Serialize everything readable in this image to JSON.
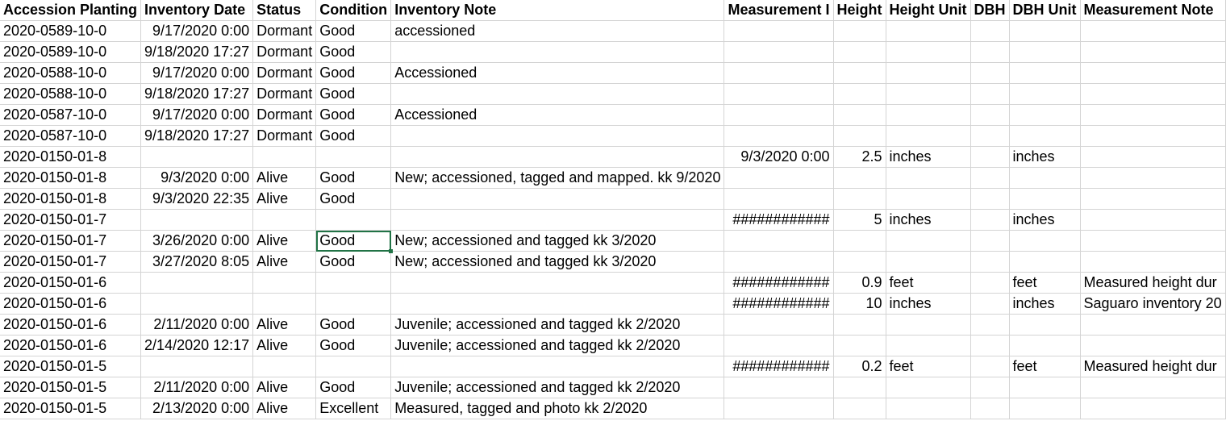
{
  "headers": [
    "Accession Planting",
    "Inventory Date",
    "Status",
    "Condition",
    "Inventory Note",
    "Measurement I",
    "Height",
    "Height Unit",
    "DBH",
    "DBH Unit",
    "Measurement Note"
  ],
  "rows": [
    [
      "2020-0589-10-0",
      "9/17/2020 0:00",
      "Dormant",
      "Good",
      "accessioned",
      "",
      "",
      "",
      "",
      "",
      ""
    ],
    [
      "2020-0589-10-0",
      "9/18/2020 17:27",
      "Dormant",
      "Good",
      "",
      "",
      "",
      "",
      "",
      "",
      ""
    ],
    [
      "2020-0588-10-0",
      "9/17/2020 0:00",
      "Dormant",
      "Good",
      "Accessioned",
      "",
      "",
      "",
      "",
      "",
      ""
    ],
    [
      "2020-0588-10-0",
      "9/18/2020 17:27",
      "Dormant",
      "Good",
      "",
      "",
      "",
      "",
      "",
      "",
      ""
    ],
    [
      "2020-0587-10-0",
      "9/17/2020 0:00",
      "Dormant",
      "Good",
      "Accessioned",
      "",
      "",
      "",
      "",
      "",
      ""
    ],
    [
      "2020-0587-10-0",
      "9/18/2020 17:27",
      "Dormant",
      "Good",
      "",
      "",
      "",
      "",
      "",
      "",
      ""
    ],
    [
      "2020-0150-01-8",
      "",
      "",
      "",
      "",
      "9/3/2020 0:00",
      "2.5",
      "inches",
      "",
      "inches",
      ""
    ],
    [
      "2020-0150-01-8",
      "9/3/2020 0:00",
      "Alive",
      "Good",
      "New; accessioned, tagged and mapped. kk 9/2020",
      "",
      "",
      "",
      "",
      "",
      ""
    ],
    [
      "2020-0150-01-8",
      "9/3/2020 22:35",
      "Alive",
      "Good",
      "",
      "",
      "",
      "",
      "",
      "",
      ""
    ],
    [
      "2020-0150-01-7",
      "",
      "",
      "",
      "",
      "############",
      "5",
      "inches",
      "",
      "inches",
      ""
    ],
    [
      "2020-0150-01-7",
      "3/26/2020 0:00",
      "Alive",
      "Good",
      "New; accessioned and tagged  kk 3/2020",
      "",
      "",
      "",
      "",
      "",
      ""
    ],
    [
      "2020-0150-01-7",
      "3/27/2020 8:05",
      "Alive",
      "Good",
      "New; accessioned and tagged  kk 3/2020",
      "",
      "",
      "",
      "",
      "",
      ""
    ],
    [
      "2020-0150-01-6",
      "",
      "",
      "",
      "",
      "############",
      "0.9",
      "feet",
      "",
      "feet",
      "Measured height dur"
    ],
    [
      "2020-0150-01-6",
      "",
      "",
      "",
      "",
      "############",
      "10",
      "inches",
      "",
      "inches",
      "Saguaro inventory 20"
    ],
    [
      "2020-0150-01-6",
      "2/11/2020 0:00",
      "Alive",
      "Good",
      "Juvenile; accessioned and tagged  kk 2/2020",
      "",
      "",
      "",
      "",
      "",
      ""
    ],
    [
      "2020-0150-01-6",
      "2/14/2020 12:17",
      "Alive",
      "Good",
      "Juvenile; accessioned and tagged  kk 2/2020",
      "",
      "",
      "",
      "",
      "",
      ""
    ],
    [
      "2020-0150-01-5",
      "",
      "",
      "",
      "",
      "############",
      "0.2",
      "feet",
      "",
      "feet",
      "Measured height dur"
    ],
    [
      "2020-0150-01-5",
      "2/11/2020 0:00",
      "Alive",
      "Good",
      "Juvenile; accessioned and tagged  kk 2/2020",
      "",
      "",
      "",
      "",
      "",
      ""
    ],
    [
      "2020-0150-01-5",
      "2/13/2020 0:00",
      "Alive",
      "Excellent",
      "Measured, tagged and photo kk 2/2020",
      "",
      "",
      "",
      "",
      "",
      ""
    ]
  ],
  "selected_cell": {
    "row": 10,
    "col": 3
  }
}
